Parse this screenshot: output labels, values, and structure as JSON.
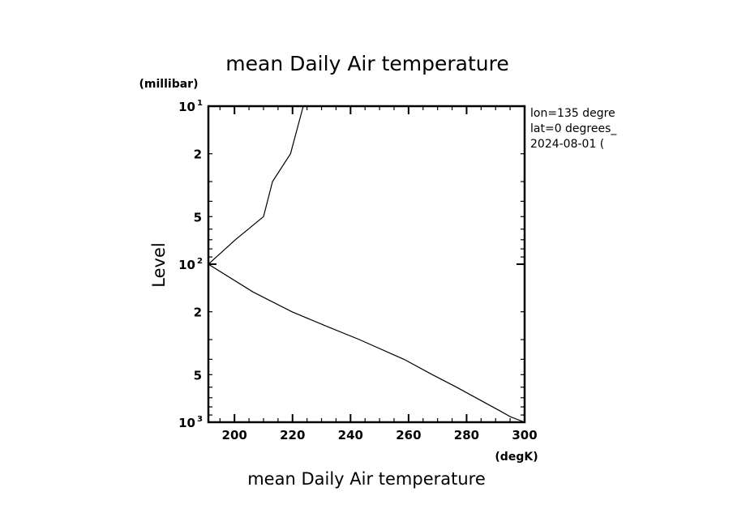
{
  "chart_data": {
    "type": "line",
    "title": "mean Daily Air temperature",
    "xlabel": "mean Daily Air temperature",
    "ylabel": "Level",
    "x_unit": "(degK)",
    "y_unit": "(millibar)",
    "xlim": [
      191,
      300
    ],
    "ylim": [
      1000,
      10
    ],
    "y_scale": "log",
    "grid": false,
    "x_ticks": [
      200,
      220,
      240,
      260,
      280,
      300
    ],
    "x_tick_labels": [
      "200",
      "220",
      "240",
      "260",
      "280",
      "300"
    ],
    "y_tick_labels": [
      {
        "value": 10,
        "base": "10",
        "exp": "1"
      },
      {
        "value": 20,
        "base": "2",
        "exp": ""
      },
      {
        "value": 50,
        "base": "5",
        "exp": ""
      },
      {
        "value": 100,
        "base": "10",
        "exp": "2"
      },
      {
        "value": 200,
        "base": "2",
        "exp": ""
      },
      {
        "value": 500,
        "base": "5",
        "exp": ""
      },
      {
        "value": 1000,
        "base": "10",
        "exp": "3"
      }
    ],
    "annotations": [
      "lon=135 degre",
      "lat=0 degrees_",
      "2024-08-01 ("
    ],
    "line_color": "#000000",
    "series": [
      {
        "points": [
          {
            "level": 1000,
            "temp": 300.0
          },
          {
            "level": 925,
            "temp": 295.2
          },
          {
            "level": 850,
            "temp": 291.6
          },
          {
            "level": 700,
            "temp": 283.2
          },
          {
            "level": 600,
            "temp": 276.5
          },
          {
            "level": 500,
            "temp": 268.2
          },
          {
            "level": 400,
            "temp": 258.4
          },
          {
            "level": 300,
            "temp": 243.0
          },
          {
            "level": 250,
            "temp": 232.4
          },
          {
            "level": 200,
            "temp": 219.8
          },
          {
            "level": 150,
            "temp": 206.4
          },
          {
            "level": 100,
            "temp": 191.0
          },
          {
            "level": 70,
            "temp": 200.3
          },
          {
            "level": 50,
            "temp": 210.0
          },
          {
            "level": 30,
            "temp": 213.1
          },
          {
            "level": 20,
            "temp": 219.3
          },
          {
            "level": 10,
            "temp": 223.7
          }
        ]
      }
    ]
  }
}
